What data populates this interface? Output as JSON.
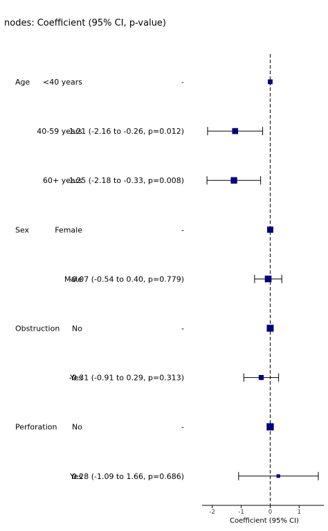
{
  "title": "nodes: Coefficient (95% CI, p-value)",
  "chart_data": {
    "type": "forest",
    "title": "nodes: Coefficient (95% CI, p-value)",
    "xlabel": "Coefficient (95% CI)",
    "xlim": [
      -2.35,
      1.85
    ],
    "xticks": [
      -2,
      -1,
      0,
      1
    ],
    "xtick_labels": [
      "-2",
      "-1",
      "0",
      "1"
    ],
    "reference_line": 0,
    "marker_color": "#00007f",
    "rows": [
      {
        "variable": "Age",
        "level": "<40 years",
        "estimate_text": "-",
        "coef": 0.0,
        "lo": null,
        "hi": null,
        "weight": 0.55
      },
      {
        "variable": "",
        "level": "40-59 years",
        "estimate_text": "-1.21 (-2.16 to -0.26, p=0.012)",
        "coef": -1.21,
        "lo": -2.16,
        "hi": -0.26,
        "weight": 0.8
      },
      {
        "variable": "",
        "level": "60+ years",
        "estimate_text": "-1.25 (-2.18 to -0.33, p=0.008)",
        "coef": -1.25,
        "lo": -2.18,
        "hi": -0.33,
        "weight": 0.9
      },
      {
        "variable": "Sex",
        "level": "Female",
        "estimate_text": "-",
        "coef": 0.0,
        "lo": null,
        "hi": null,
        "weight": 0.85
      },
      {
        "variable": "",
        "level": "Male",
        "estimate_text": "-0.07 (-0.54 to 0.40, p=0.779)",
        "coef": -0.07,
        "lo": -0.54,
        "hi": 0.4,
        "weight": 0.95
      },
      {
        "variable": "Obstruction",
        "level": "No",
        "estimate_text": "-",
        "coef": 0.0,
        "lo": null,
        "hi": null,
        "weight": 1.0
      },
      {
        "variable": "",
        "level": "Yes",
        "estimate_text": "-0.31 (-0.91 to 0.29, p=0.313)",
        "coef": -0.31,
        "lo": -0.91,
        "hi": 0.29,
        "weight": 0.6
      },
      {
        "variable": "Perforation",
        "level": "No",
        "estimate_text": "-",
        "coef": 0.0,
        "lo": null,
        "hi": null,
        "weight": 1.05
      },
      {
        "variable": "",
        "level": "Yes",
        "estimate_text": "0.28 (-1.09 to 1.66, p=0.686)",
        "coef": 0.28,
        "lo": -1.09,
        "hi": 1.66,
        "weight": 0.3
      }
    ]
  }
}
